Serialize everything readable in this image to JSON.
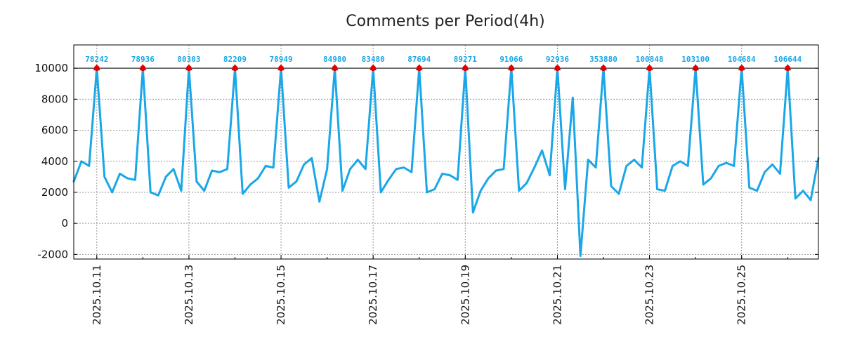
{
  "chart_data": {
    "type": "line",
    "title": "Comments per Period(4h)",
    "xlabel": "",
    "ylabel": "",
    "ylim": [
      -2300,
      11500
    ],
    "xlim": [
      0,
      97
    ],
    "grid": true,
    "threshold": 10000,
    "yticks": [
      -2000,
      0,
      2000,
      4000,
      6000,
      8000,
      10000
    ],
    "xticks": [
      {
        "x": 3,
        "label": "2025.10.11"
      },
      {
        "x": 15,
        "label": "2025.10.13"
      },
      {
        "x": 27,
        "label": "2025.10.15"
      },
      {
        "x": 39,
        "label": "2025.10.17"
      },
      {
        "x": 51,
        "label": "2025.10.19"
      },
      {
        "x": 63,
        "label": "2025.10.21"
      },
      {
        "x": 75,
        "label": "2025.10.23"
      },
      {
        "x": 87,
        "label": "2025.10.25"
      }
    ],
    "series": [
      {
        "name": "Comments",
        "color": "#1aa7e8",
        "values": [
          2700,
          4000,
          3700,
          10000,
          3000,
          2000,
          3200,
          2900,
          2800,
          10000,
          2000,
          1800,
          3000,
          3500,
          2100,
          10000,
          2700,
          2100,
          3400,
          3300,
          3500,
          10000,
          1900,
          2500,
          2900,
          3700,
          3600,
          10000,
          2300,
          2700,
          3800,
          4200,
          1400,
          3500,
          10000,
          2100,
          3500,
          4100,
          3500,
          10000,
          2000,
          2800,
          3500,
          3600,
          3300,
          10000,
          2000,
          2200,
          3200,
          3100,
          2800,
          10000,
          700,
          2100,
          2900,
          3400,
          3500,
          10000,
          2100,
          2600,
          3600,
          4700,
          3100,
          10000,
          2200,
          8100,
          -2100,
          4100,
          3600,
          10000,
          2400,
          1900,
          3700,
          4100,
          3600,
          10000,
          2200,
          2100,
          3700,
          4000,
          3700,
          10000,
          2500,
          2900,
          3700,
          3900,
          3700,
          10000,
          2300,
          2100,
          3300,
          3800,
          3200,
          10000,
          1600,
          2100,
          1500,
          4200
        ]
      }
    ],
    "peaks": [
      {
        "x": 3,
        "y": 10000,
        "label": "78242"
      },
      {
        "x": 9,
        "y": 10000,
        "label": "78936"
      },
      {
        "x": 15,
        "y": 10000,
        "label": "80303"
      },
      {
        "x": 21,
        "y": 10000,
        "label": "82209"
      },
      {
        "x": 27,
        "y": 10000,
        "label": "78949"
      },
      {
        "x": 34,
        "y": 10000,
        "label": "84980"
      },
      {
        "x": 39,
        "y": 10000,
        "label": "83480"
      },
      {
        "x": 45,
        "y": 10000,
        "label": "87694"
      },
      {
        "x": 51,
        "y": 10000,
        "label": "89271"
      },
      {
        "x": 57,
        "y": 10000,
        "label": "91066"
      },
      {
        "x": 63,
        "y": 10000,
        "label": "92936"
      },
      {
        "x": 69,
        "y": 10000,
        "label": "353880"
      },
      {
        "x": 75,
        "y": 10000,
        "label": "100848"
      },
      {
        "x": 81,
        "y": 10000,
        "label": "103100"
      },
      {
        "x": 87,
        "y": 10000,
        "label": "104684"
      },
      {
        "x": 93,
        "y": 10000,
        "label": "106644"
      }
    ],
    "peak_marker_color": "#e00000",
    "peak_label_color": "#1aa7e8"
  }
}
